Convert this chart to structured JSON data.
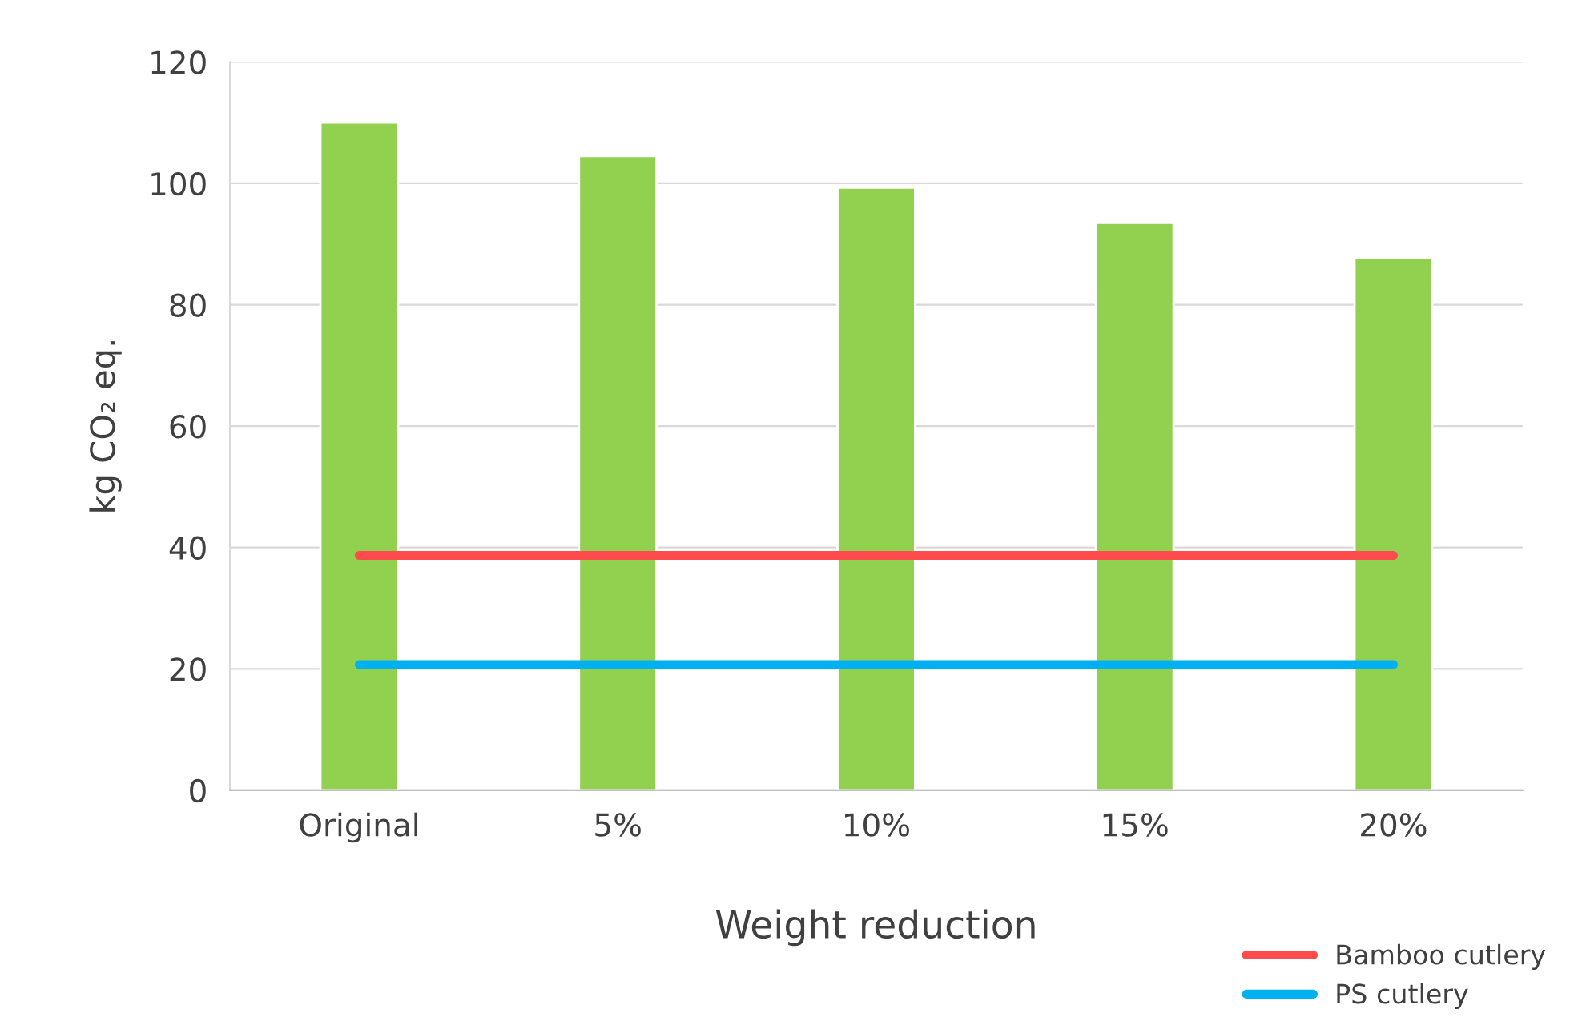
{
  "chart_data": {
    "type": "bar",
    "xlabel": "Weight reduction",
    "ylabel": "kg CO₂ eq.",
    "categories": [
      "Original",
      "5%",
      "10%",
      "15%",
      "20%"
    ],
    "series": [
      {
        "color": "#92d050",
        "values": [
          110,
          104.5,
          99.3,
          93.5,
          87.7
        ]
      },
      {
        "type": "line",
        "name": "Bamboo cutlery",
        "color": "#ff4b4b",
        "values": [
          38.7,
          38.7,
          38.7,
          38.7,
          38.7
        ]
      },
      {
        "type": "line",
        "name": "PS cutlery",
        "color": "#00b0f0",
        "values": [
          20.7,
          20.7,
          20.7,
          20.7,
          20.7
        ]
      }
    ],
    "ylim": [
      0,
      120
    ],
    "yticks": [
      0,
      20,
      40,
      60,
      80,
      100,
      120
    ],
    "grid": "y",
    "legend": "bottom right",
    "line_style": "solid",
    "marker": "none"
  }
}
